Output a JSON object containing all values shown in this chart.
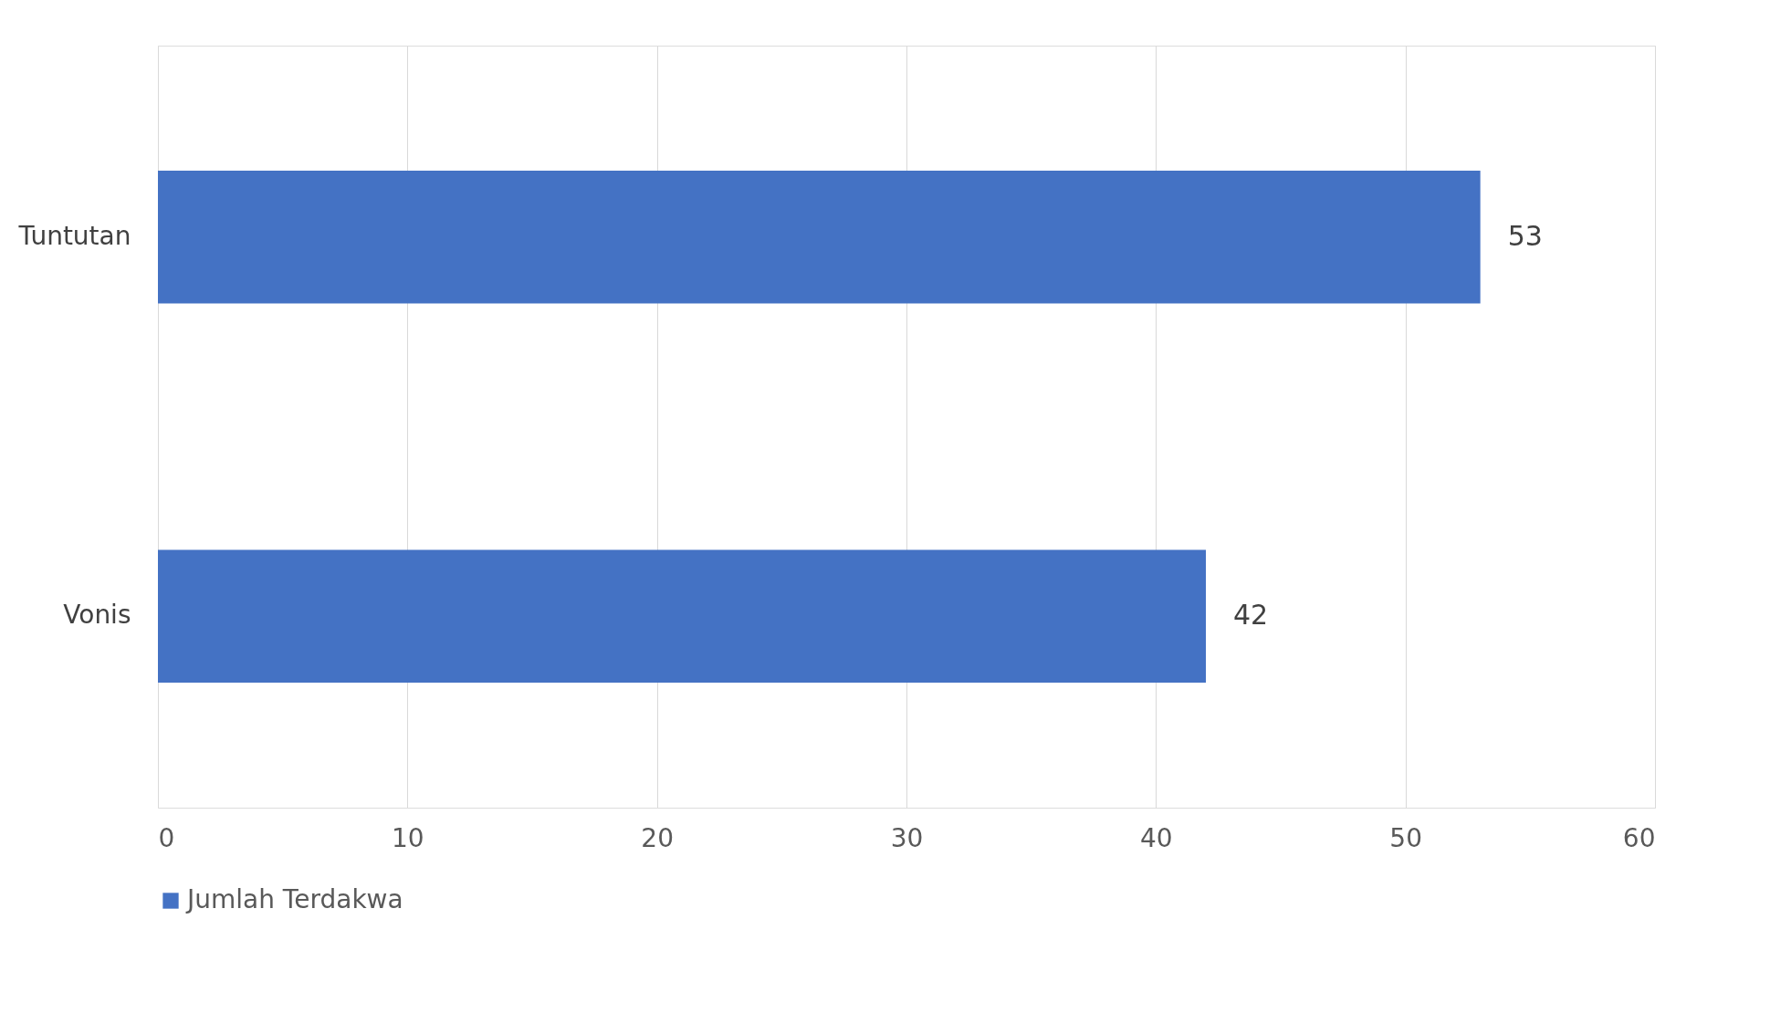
{
  "chart_data": {
    "type": "bar",
    "orientation": "horizontal",
    "categories": [
      "Tuntutan",
      "Vonis"
    ],
    "series": [
      {
        "name": "Jumlah Terdakwa",
        "color": "#4472c4",
        "values": [
          53,
          42
        ]
      }
    ],
    "xlim": [
      0,
      60
    ],
    "xticks": [
      0,
      10,
      20,
      30,
      40,
      50,
      60
    ],
    "grid": "x",
    "legend": "bottom",
    "data_labels": true
  }
}
